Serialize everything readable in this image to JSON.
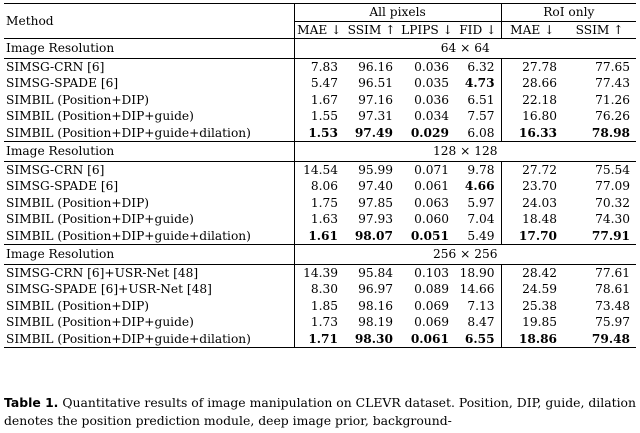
{
  "header": {
    "method": "Method",
    "all_pixels": "All pixels",
    "roi_only": "RoI only",
    "metrics_all": [
      "MAE ↓",
      "SSIM ↑",
      "LPIPS ↓",
      "FID ↓"
    ],
    "metrics_roi": [
      "MAE ↓",
      "SSIM ↑"
    ]
  },
  "sections": [
    {
      "label": "Image Resolution",
      "resolution": "64 × 64",
      "rows": [
        {
          "method": "SIMSG-CRN [6]",
          "values": [
            "7.83",
            "96.16",
            "0.036",
            "6.32",
            "27.78",
            "77.65"
          ],
          "bold": [
            false,
            false,
            false,
            false,
            false,
            false
          ]
        },
        {
          "method": "SIMSG-SPADE [6]",
          "values": [
            "5.47",
            "96.51",
            "0.035",
            "4.73",
            "28.66",
            "77.43"
          ],
          "bold": [
            false,
            false,
            false,
            true,
            false,
            false
          ]
        },
        {
          "method": "SIMBIL (Position+DIP)",
          "values": [
            "1.67",
            "97.16",
            "0.036",
            "6.51",
            "22.18",
            "71.26"
          ],
          "bold": [
            false,
            false,
            false,
            false,
            false,
            false
          ]
        },
        {
          "method": "SIMBIL (Position+DIP+guide)",
          "values": [
            "1.55",
            "97.31",
            "0.034",
            "7.57",
            "16.80",
            "76.26"
          ],
          "bold": [
            false,
            false,
            false,
            false,
            false,
            false
          ]
        },
        {
          "method": "SIMBIL (Position+DIP+guide+dilation)",
          "values": [
            "1.53",
            "97.49",
            "0.029",
            "6.08",
            "16.33",
            "78.98"
          ],
          "bold": [
            true,
            true,
            true,
            false,
            true,
            true
          ]
        }
      ]
    },
    {
      "label": "Image Resolution",
      "resolution": "128 × 128",
      "rows": [
        {
          "method": "SIMSG-CRN [6]",
          "values": [
            "14.54",
            "95.99",
            "0.071",
            "9.78",
            "27.72",
            "75.54"
          ],
          "bold": [
            false,
            false,
            false,
            false,
            false,
            false
          ]
        },
        {
          "method": "SIMSG-SPADE [6]",
          "values": [
            "8.06",
            "97.40",
            "0.061",
            "4.66",
            "23.70",
            "77.09"
          ],
          "bold": [
            false,
            false,
            false,
            true,
            false,
            false
          ]
        },
        {
          "method": "SIMBIL (Position+DIP)",
          "values": [
            "1.75",
            "97.85",
            "0.063",
            "5.97",
            "24.03",
            "70.32"
          ],
          "bold": [
            false,
            false,
            false,
            false,
            false,
            false
          ]
        },
        {
          "method": "SIMBIL (Position+DIP+guide)",
          "values": [
            "1.63",
            "97.93",
            "0.060",
            "7.04",
            "18.48",
            "74.30"
          ],
          "bold": [
            false,
            false,
            false,
            false,
            false,
            false
          ]
        },
        {
          "method": "SIMBIL (Position+DIP+guide+dilation)",
          "values": [
            "1.61",
            "98.07",
            "0.051",
            "5.49",
            "17.70",
            "77.91"
          ],
          "bold": [
            true,
            true,
            true,
            false,
            true,
            true
          ]
        }
      ]
    },
    {
      "label": "Image Resolution",
      "resolution": "256 × 256",
      "rows": [
        {
          "method": "SIMSG-CRN [6]+USR-Net [48]",
          "values": [
            "14.39",
            "95.84",
            "0.103",
            "18.90",
            "28.42",
            "77.61"
          ],
          "bold": [
            false,
            false,
            false,
            false,
            false,
            false
          ]
        },
        {
          "method": "SIMSG-SPADE [6]+USR-Net [48]",
          "values": [
            "8.30",
            "96.97",
            "0.089",
            "14.66",
            "24.59",
            "78.61"
          ],
          "bold": [
            false,
            false,
            false,
            false,
            false,
            false
          ]
        },
        {
          "method": "SIMBIL (Position+DIP)",
          "values": [
            "1.85",
            "98.16",
            "0.069",
            "7.13",
            "25.38",
            "73.48"
          ],
          "bold": [
            false,
            false,
            false,
            false,
            false,
            false
          ]
        },
        {
          "method": "SIMBIL (Position+DIP+guide)",
          "values": [
            "1.73",
            "98.19",
            "0.069",
            "8.47",
            "19.85",
            "75.97"
          ],
          "bold": [
            false,
            false,
            false,
            false,
            false,
            false
          ]
        },
        {
          "method": "SIMBIL (Position+DIP+guide+dilation)",
          "values": [
            "1.71",
            "98.30",
            "0.061",
            "6.55",
            "18.86",
            "79.48"
          ],
          "bold": [
            true,
            true,
            true,
            true,
            true,
            true
          ]
        }
      ]
    }
  ],
  "caption": {
    "label": "Table 1.",
    "text": "Quantitative results of image manipulation on CLEVR dataset. Position, DIP, guide, dilation denotes the position prediction module, deep image prior, background-"
  }
}
